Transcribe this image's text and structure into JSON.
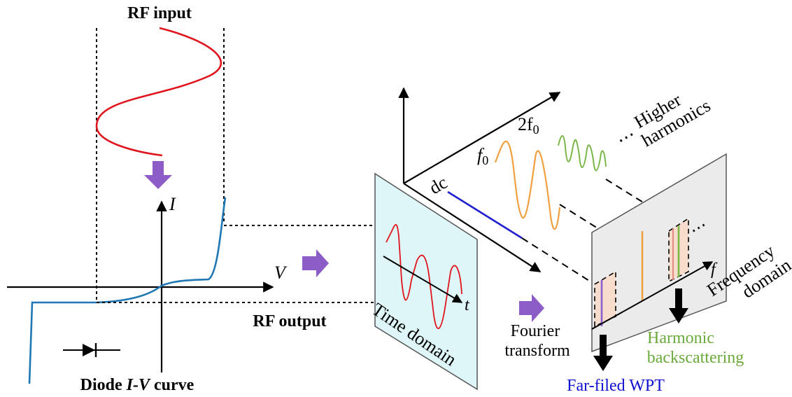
{
  "labels": {
    "rf_input": "RF input",
    "rf_output": "RF output",
    "axis_i": "I",
    "axis_v": "V",
    "diode_caption_prefix": "Diode ",
    "diode_caption_iv": "I-V",
    "diode_caption_suffix": " curve",
    "time_domain": "Time domain",
    "axis_t": "t",
    "fourier_line1": "Fourier",
    "fourier_line2": "transform",
    "dc": "dc",
    "f0_base": "f",
    "f0_sub": "0",
    "two_f0_base": "2f",
    "two_f0_sub": "0",
    "dots": "⋯",
    "higher_line1": "Higher",
    "higher_line2": "harmonics",
    "axis_f": "f",
    "frequency_line1": "Frequency",
    "frequency_line2": "domain",
    "harmonic_line1": "Harmonic",
    "harmonic_line2": "backscattering",
    "far_field": "Far-filed WPT"
  },
  "colors": {
    "rf_wave": "#e0141c",
    "iv_curve": "#1f77b4",
    "arrow_purple": "#8c5cc7",
    "dc_line": "#1f1fd0",
    "f0_wave": "#f0a040",
    "harmonic_wave": "#7ab648",
    "far_field_text": "#1010d0",
    "harmonic_text": "#6aaa3a",
    "time_panel": "#dff6f8",
    "freq_panel": "#ebebeb",
    "bin_fill": "#f8dccc",
    "bin_purple": "#8a5fd0"
  }
}
